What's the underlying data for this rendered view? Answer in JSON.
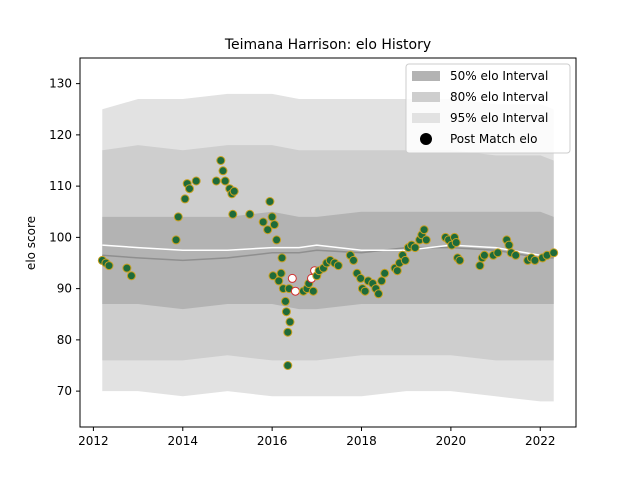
{
  "chart_data": {
    "type": "scatter",
    "title": "Teimana Harrison: elo History",
    "xlabel": "",
    "ylabel": "elo score",
    "xlim": [
      2011.7,
      2022.8
    ],
    "ylim": [
      63,
      135
    ],
    "x_ticks": [
      2012,
      2014,
      2016,
      2018,
      2020,
      2022
    ],
    "x_tick_labels": [
      "2012",
      "2014",
      "2016",
      "2018",
      "2020",
      "2022"
    ],
    "y_ticks": [
      70,
      80,
      90,
      100,
      110,
      120,
      130
    ],
    "y_tick_labels": [
      "70",
      "80",
      "90",
      "100",
      "110",
      "120",
      "130"
    ],
    "legend": {
      "position": "top-right",
      "entries": [
        "50% elo Interval",
        "80% elo Interval",
        "95% elo Interval",
        "Post Match elo"
      ]
    },
    "colors": {
      "band50": "#b3b3b3",
      "band80": "#cecece",
      "band95": "#e2e2e2",
      "median": "#8f8f8f",
      "mean": "#ffffff",
      "point_fill": "#1e6b3a",
      "point_edge": "#c8a020",
      "point_fill_alt": "#ffffff",
      "point_edge_alt": "#d03030"
    },
    "bands": {
      "x": [
        2012.2,
        2013.0,
        2014.0,
        2015.0,
        2016.0,
        2016.6,
        2017.0,
        2018.0,
        2019.0,
        2020.0,
        2021.0,
        2022.0,
        2022.3
      ],
      "p95_upper": [
        125,
        127,
        127,
        128,
        128,
        127,
        127,
        127,
        127,
        127,
        126,
        126,
        125
      ],
      "p80_upper": [
        117,
        118,
        117,
        118,
        118,
        117,
        117,
        117,
        117,
        117,
        116,
        116,
        115
      ],
      "p50_upper": [
        104,
        104,
        104,
        104,
        105,
        104,
        104,
        105,
        105,
        105,
        105,
        105,
        104
      ],
      "p50_lower": [
        87,
        87,
        86,
        87,
        87,
        86,
        86,
        87,
        87,
        87,
        87,
        87,
        87
      ],
      "p80_lower": [
        76,
        76,
        76,
        77,
        76,
        76,
        76,
        77,
        77,
        77,
        76,
        76,
        76
      ],
      "p95_lower": [
        70,
        70,
        69,
        70,
        69,
        69,
        69,
        69,
        70,
        70,
        69,
        68,
        68
      ],
      "median": [
        96.5,
        96,
        95.5,
        96,
        97,
        97,
        97.5,
        97,
        98,
        98,
        97.5,
        96,
        96
      ],
      "mean": [
        98.5,
        98,
        97.5,
        97.5,
        98,
        98,
        98.5,
        97.5,
        97.5,
        98.5,
        98,
        96.5,
        96.5
      ]
    },
    "points": [
      {
        "x": 2012.2,
        "y": 95.5
      },
      {
        "x": 2012.28,
        "y": 95
      },
      {
        "x": 2012.35,
        "y": 94.5
      },
      {
        "x": 2012.75,
        "y": 94
      },
      {
        "x": 2012.85,
        "y": 92.5
      },
      {
        "x": 2013.85,
        "y": 99.5
      },
      {
        "x": 2013.9,
        "y": 104
      },
      {
        "x": 2014.05,
        "y": 107.5
      },
      {
        "x": 2014.1,
        "y": 110.5
      },
      {
        "x": 2014.15,
        "y": 109.5
      },
      {
        "x": 2014.3,
        "y": 111
      },
      {
        "x": 2014.75,
        "y": 111
      },
      {
        "x": 2014.85,
        "y": 115
      },
      {
        "x": 2014.9,
        "y": 113
      },
      {
        "x": 2014.95,
        "y": 111
      },
      {
        "x": 2015.05,
        "y": 109.5
      },
      {
        "x": 2015.1,
        "y": 108.5
      },
      {
        "x": 2015.15,
        "y": 109
      },
      {
        "x": 2015.12,
        "y": 104.5
      },
      {
        "x": 2015.5,
        "y": 104.5
      },
      {
        "x": 2015.8,
        "y": 103
      },
      {
        "x": 2015.9,
        "y": 101.5
      },
      {
        "x": 2015.95,
        "y": 107
      },
      {
        "x": 2016.0,
        "y": 104
      },
      {
        "x": 2016.05,
        "y": 102.5
      },
      {
        "x": 2016.1,
        "y": 99.5
      },
      {
        "x": 2016.02,
        "y": 92.5
      },
      {
        "x": 2016.15,
        "y": 91.5
      },
      {
        "x": 2016.2,
        "y": 93
      },
      {
        "x": 2016.22,
        "y": 96
      },
      {
        "x": 2016.25,
        "y": 90
      },
      {
        "x": 2016.3,
        "y": 87.5
      },
      {
        "x": 2016.32,
        "y": 85.5
      },
      {
        "x": 2016.35,
        "y": 81.5
      },
      {
        "x": 2016.4,
        "y": 83.5
      },
      {
        "x": 2016.38,
        "y": 90
      },
      {
        "x": 2016.35,
        "y": 75
      },
      {
        "x": 2016.45,
        "y": 92,
        "alt": true
      },
      {
        "x": 2016.52,
        "y": 89.5,
        "alt": true
      },
      {
        "x": 2016.7,
        "y": 89.5
      },
      {
        "x": 2016.78,
        "y": 90
      },
      {
        "x": 2016.82,
        "y": 91
      },
      {
        "x": 2016.88,
        "y": 92,
        "alt": true
      },
      {
        "x": 2016.95,
        "y": 93.5,
        "alt": true
      },
      {
        "x": 2016.92,
        "y": 89.5
      },
      {
        "x": 2017.0,
        "y": 92.5
      },
      {
        "x": 2017.05,
        "y": 93.5
      },
      {
        "x": 2017.15,
        "y": 94
      },
      {
        "x": 2017.22,
        "y": 95
      },
      {
        "x": 2017.3,
        "y": 95.5
      },
      {
        "x": 2017.4,
        "y": 95
      },
      {
        "x": 2017.48,
        "y": 94.5
      },
      {
        "x": 2017.75,
        "y": 96.5
      },
      {
        "x": 2017.82,
        "y": 95.5
      },
      {
        "x": 2017.9,
        "y": 93
      },
      {
        "x": 2017.98,
        "y": 92
      },
      {
        "x": 2018.02,
        "y": 90
      },
      {
        "x": 2018.08,
        "y": 89.5
      },
      {
        "x": 2018.15,
        "y": 91.5
      },
      {
        "x": 2018.25,
        "y": 91
      },
      {
        "x": 2018.32,
        "y": 90
      },
      {
        "x": 2018.38,
        "y": 89
      },
      {
        "x": 2018.45,
        "y": 91.5
      },
      {
        "x": 2018.52,
        "y": 93
      },
      {
        "x": 2018.75,
        "y": 94
      },
      {
        "x": 2018.8,
        "y": 93.5
      },
      {
        "x": 2018.85,
        "y": 95
      },
      {
        "x": 2018.92,
        "y": 96.5
      },
      {
        "x": 2018.98,
        "y": 95.5
      },
      {
        "x": 2019.05,
        "y": 98
      },
      {
        "x": 2019.12,
        "y": 98.5
      },
      {
        "x": 2019.2,
        "y": 98
      },
      {
        "x": 2019.3,
        "y": 99.5
      },
      {
        "x": 2019.35,
        "y": 100.5
      },
      {
        "x": 2019.4,
        "y": 101.5
      },
      {
        "x": 2019.45,
        "y": 99.5
      },
      {
        "x": 2019.88,
        "y": 100
      },
      {
        "x": 2019.95,
        "y": 99.5
      },
      {
        "x": 2020.02,
        "y": 98.5
      },
      {
        "x": 2020.08,
        "y": 100
      },
      {
        "x": 2020.12,
        "y": 99
      },
      {
        "x": 2020.15,
        "y": 96
      },
      {
        "x": 2020.2,
        "y": 95.5
      },
      {
        "x": 2020.65,
        "y": 94.5
      },
      {
        "x": 2020.7,
        "y": 96
      },
      {
        "x": 2020.75,
        "y": 96.5
      },
      {
        "x": 2020.95,
        "y": 96.5
      },
      {
        "x": 2021.05,
        "y": 97
      },
      {
        "x": 2021.25,
        "y": 99.5
      },
      {
        "x": 2021.3,
        "y": 98.5
      },
      {
        "x": 2021.35,
        "y": 97
      },
      {
        "x": 2021.45,
        "y": 96.5
      },
      {
        "x": 2021.72,
        "y": 95.5
      },
      {
        "x": 2021.8,
        "y": 96
      },
      {
        "x": 2021.88,
        "y": 95.5
      },
      {
        "x": 2022.05,
        "y": 96
      },
      {
        "x": 2022.15,
        "y": 96.5
      },
      {
        "x": 2022.3,
        "y": 97
      }
    ]
  }
}
